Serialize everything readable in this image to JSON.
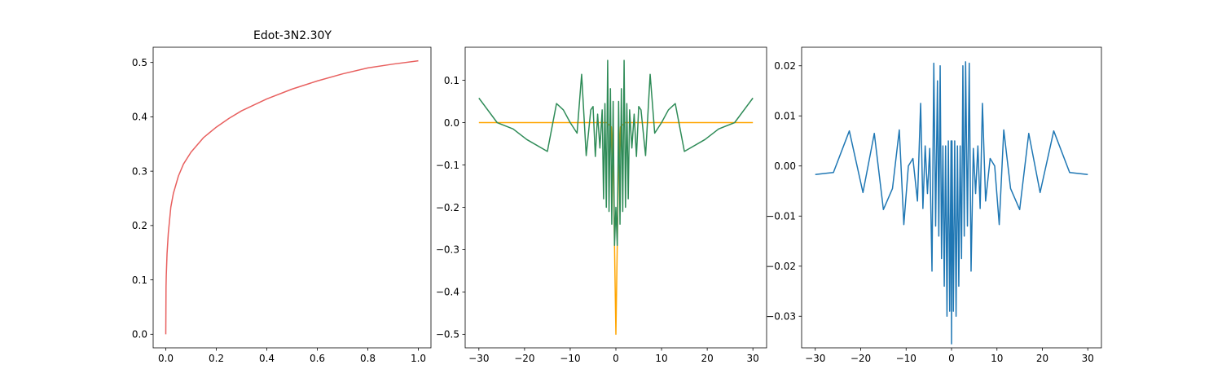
{
  "colors": {
    "curve": "#e8605f",
    "orange": "#ffa500",
    "green": "#2e8b57",
    "blue": "#1f77b4",
    "axes": "#000000"
  },
  "chart_data": [
    {
      "type": "line",
      "title": "Edot-3N2.30Y",
      "xlim": [
        -0.05,
        1.05
      ],
      "ylim": [
        -0.025,
        0.528
      ],
      "xticks": [
        0.0,
        0.2,
        0.4,
        0.6,
        0.8,
        1.0
      ],
      "xtick_labels": [
        "0.0",
        "0.2",
        "0.4",
        "0.6",
        "0.8",
        "1.0"
      ],
      "yticks": [
        0.0,
        0.1,
        0.2,
        0.3,
        0.4,
        0.5
      ],
      "ytick_labels": [
        "0.0",
        "0.1",
        "0.2",
        "0.3",
        "0.4",
        "0.5"
      ],
      "series": [
        {
          "color_key": "curve",
          "x": [
            0,
            0.001,
            0.002,
            0.005,
            0.01,
            0.02,
            0.03,
            0.05,
            0.07,
            0.1,
            0.15,
            0.2,
            0.25,
            0.3,
            0.4,
            0.5,
            0.6,
            0.7,
            0.8,
            0.9,
            1.0
          ],
          "y": [
            0,
            0.087,
            0.109,
            0.148,
            0.186,
            0.234,
            0.259,
            0.291,
            0.313,
            0.335,
            0.362,
            0.381,
            0.397,
            0.411,
            0.433,
            0.451,
            0.466,
            0.479,
            0.49,
            0.497,
            0.503
          ]
        }
      ]
    },
    {
      "type": "line",
      "xlim": [
        -33,
        33
      ],
      "ylim": [
        -0.532,
        0.178
      ],
      "xticks": [
        -30,
        -20,
        -10,
        0,
        10,
        20,
        30
      ],
      "xtick_labels": [
        "−30",
        "−20",
        "−10",
        "0",
        "10",
        "20",
        "30"
      ],
      "yticks": [
        -0.5,
        -0.4,
        -0.3,
        -0.2,
        -0.1,
        0.0,
        0.1
      ],
      "ytick_labels": [
        "−0.5",
        "−0.4",
        "−0.3",
        "−0.2",
        "−0.1",
        "0.0",
        "0.1"
      ],
      "series": [
        {
          "color_key": "orange",
          "x": [
            -30,
            -20,
            -10,
            -5,
            -2,
            -1,
            -0.5,
            0,
            0.5,
            1,
            2,
            5,
            10,
            20,
            30
          ],
          "y": [
            0,
            0,
            0,
            0,
            0,
            -0.01,
            -0.15,
            -0.5,
            -0.15,
            -0.01,
            0,
            0,
            0,
            0,
            0
          ]
        },
        {
          "color_key": "green",
          "x": [
            -30,
            -26,
            -22.5,
            -19.5,
            -15,
            -13,
            -11.5,
            -10,
            -8.5,
            -7.5,
            -6.5,
            -5.5,
            -5,
            -4.5,
            -4,
            -3.5,
            -3,
            -2.7,
            -2.4,
            -2.1,
            -1.8,
            -1.5,
            -1.2,
            -0.9,
            -0.6,
            -0.3,
            0,
            0.3,
            0.6,
            0.9,
            1.2,
            1.5,
            1.8,
            2.1,
            2.4,
            2.7,
            3,
            3.5,
            4,
            4.5,
            5,
            5.5,
            6.5,
            7.5,
            8.5,
            10,
            11.5,
            13,
            15,
            19.5,
            22.5,
            26,
            30
          ],
          "y": [
            0.058,
            0.0,
            -0.015,
            -0.04,
            -0.068,
            0.045,
            0.03,
            0.0,
            -0.025,
            0.114,
            -0.078,
            0.03,
            0.038,
            -0.08,
            0.02,
            -0.06,
            0.03,
            -0.18,
            0.045,
            -0.2,
            0.147,
            -0.21,
            0.08,
            -0.24,
            0.05,
            -0.29,
            -0.2,
            -0.29,
            0.05,
            -0.24,
            0.08,
            -0.21,
            0.147,
            -0.2,
            0.045,
            -0.18,
            0.03,
            -0.06,
            0.02,
            -0.08,
            0.038,
            0.03,
            -0.078,
            0.114,
            -0.025,
            0.0,
            0.03,
            0.045,
            -0.068,
            -0.04,
            -0.015,
            0.0,
            0.058
          ]
        }
      ]
    },
    {
      "type": "line",
      "xlim": [
        -33,
        33
      ],
      "ylim": [
        -0.0363,
        0.0237
      ],
      "xticks": [
        -30,
        -20,
        -10,
        0,
        10,
        20,
        30
      ],
      "xtick_labels": [
        "−30",
        "−20",
        "−10",
        "0",
        "10",
        "20",
        "30"
      ],
      "yticks": [
        -0.03,
        -0.02,
        -0.01,
        0.0,
        0.01,
        0.02
      ],
      "ytick_labels": [
        "−0.03",
        "−0.02",
        "−0.01",
        "0.00",
        "0.01",
        "0.02"
      ],
      "series": [
        {
          "color_key": "blue",
          "x": [
            -30,
            -26,
            -22.5,
            -19.5,
            -17,
            -15,
            -13,
            -11.5,
            -10.5,
            -9.5,
            -8.5,
            -7.5,
            -6.8,
            -6.3,
            -5.8,
            -5.3,
            -4.8,
            -4.3,
            -3.9,
            -3.5,
            -3.1,
            -2.8,
            -2.5,
            -2.2,
            -1.9,
            -1.6,
            -1.3,
            -1.0,
            -0.7,
            -0.4,
            -0.1,
            0.0,
            0.1,
            0.4,
            0.7,
            1.0,
            1.3,
            1.6,
            1.9,
            2.2,
            2.5,
            2.8,
            3.1,
            3.5,
            3.9,
            4.3,
            4.8,
            5.3,
            5.8,
            6.3,
            6.8,
            7.5,
            8.5,
            9.5,
            10.5,
            11.5,
            13,
            15,
            17,
            19.5,
            22.5,
            26,
            30
          ],
          "y": [
            -0.0017,
            -0.0013,
            0.007,
            -0.0053,
            0.0065,
            -0.0087,
            -0.0045,
            0.0072,
            -0.0117,
            0.0,
            0.0015,
            -0.007,
            0.0125,
            -0.0085,
            0.004,
            -0.0055,
            0.0035,
            -0.021,
            0.0205,
            -0.012,
            0.017,
            -0.014,
            0.02,
            -0.0185,
            0.004,
            -0.024,
            0.004,
            -0.03,
            0.005,
            -0.029,
            0.005,
            -0.0355,
            0.005,
            -0.029,
            0.005,
            -0.03,
            0.004,
            -0.024,
            0.004,
            -0.0185,
            0.02,
            -0.014,
            0.0208,
            -0.012,
            0.0205,
            -0.021,
            0.0035,
            -0.0055,
            0.004,
            -0.0085,
            0.0125,
            -0.007,
            0.0015,
            0.0,
            -0.0117,
            0.0072,
            -0.0045,
            -0.0087,
            0.0065,
            -0.0053,
            0.007,
            -0.0013,
            -0.0017
          ]
        }
      ]
    }
  ]
}
